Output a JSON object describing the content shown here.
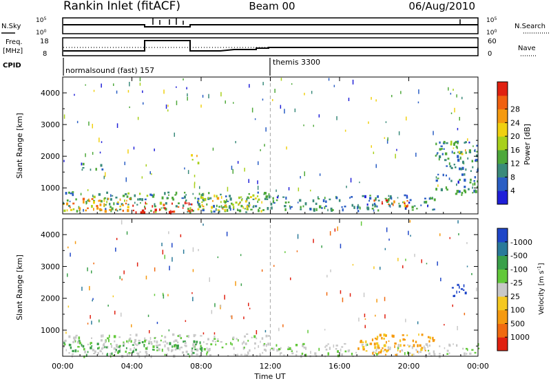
{
  "header": {
    "station": "Rankin Inlet (fitACF)",
    "beam": "Beam 00",
    "date": "06/Aug/2010"
  },
  "status_panels": {
    "nsky": {
      "label": "N.Sky",
      "right_label": "N.Search",
      "ticks_left": [
        "10^5",
        "10^0"
      ],
      "ticks_right": [
        "10^5",
        "10^0"
      ]
    },
    "freq": {
      "label": "Freq.",
      "unit": "[MHz]",
      "right_label": "Nave",
      "ticks_left": [
        "18",
        "8"
      ],
      "ticks_right": [
        "60",
        "0"
      ]
    },
    "cpid": {
      "label": "CPID",
      "segments": [
        {
          "name": "normalsound (fast) 157",
          "start_hour": 0
        },
        {
          "name": "themis 3300",
          "start_hour": 12
        }
      ]
    }
  },
  "time_axis": {
    "label": "Time UT",
    "ticks": [
      "00:00",
      "04:00",
      "08:00",
      "12:00",
      "16:00",
      "20:00",
      "00:00"
    ]
  },
  "chart_data": [
    {
      "type": "heatmap",
      "title": "",
      "xlabel": "Time UT",
      "ylabel": "Slant Range [km]",
      "xlim": [
        0,
        24
      ],
      "ylim": [
        180,
        4500
      ],
      "yticks": [
        "1000",
        "2000",
        "3000",
        "4000"
      ],
      "colorbar": {
        "label": "Power [dB]",
        "ticks": [
          "4",
          "8",
          "12",
          "16",
          "20",
          "24",
          "28"
        ],
        "range": [
          0,
          30
        ],
        "colors": [
          "#1f1fd8",
          "#2a5ec4",
          "#3a8a7a",
          "#4ea83a",
          "#a8d01c",
          "#f0d010",
          "#f59a10",
          "#f06010",
          "#e02010"
        ]
      },
      "regions": [
        {
          "t0": 0.0,
          "t1": 12.0,
          "r0": 250,
          "r1": 900,
          "value": 10
        },
        {
          "t0": 0.0,
          "t1": 4.0,
          "r0": 300,
          "r1": 700,
          "value": 22
        },
        {
          "t0": 4.0,
          "t1": 7.5,
          "r0": 250,
          "r1": 600,
          "value": 28
        },
        {
          "t0": 7.5,
          "t1": 11.5,
          "r0": 300,
          "r1": 800,
          "value": 16
        },
        {
          "t0": 12.0,
          "t1": 21.5,
          "r0": 300,
          "r1": 800,
          "value": 8
        },
        {
          "t0": 17.5,
          "t1": 20.0,
          "r0": 450,
          "r1": 650,
          "value": 24
        },
        {
          "t0": 1.0,
          "t1": 2.5,
          "r0": 1600,
          "r1": 1800,
          "value": 6
        },
        {
          "t0": 7.2,
          "t1": 7.8,
          "r0": 1800,
          "r1": 2100,
          "value": 18
        },
        {
          "t0": 21.5,
          "t1": 24.0,
          "r0": 800,
          "r1": 2500,
          "value": 8
        },
        {
          "t0": 22.3,
          "t1": 23.3,
          "r0": 2100,
          "r1": 2500,
          "value": 18
        }
      ]
    },
    {
      "type": "heatmap",
      "title": "",
      "xlabel": "Time UT",
      "ylabel": "Slant Range [km]",
      "xlim": [
        0,
        24
      ],
      "ylim": [
        180,
        4500
      ],
      "yticks": [
        "1000",
        "2000",
        "3000",
        "4000"
      ],
      "colorbar": {
        "label": "Velocity [m s^-1]",
        "ticks": [
          "1000",
          "500",
          "100",
          "25",
          "-25",
          "-100",
          "-500",
          "-1000"
        ],
        "colors": [
          "#1f46c8",
          "#2a7a9a",
          "#3aa04a",
          "#62c83a",
          "#c8c8c8",
          "#f5c820",
          "#f59a10",
          "#f06a10",
          "#e02010"
        ]
      },
      "regions": [
        {
          "t0": 0.0,
          "t1": 12.0,
          "r0": 200,
          "r1": 900,
          "value": "grey"
        },
        {
          "t0": 0.0,
          "t1": 8.0,
          "r0": 250,
          "r1": 700,
          "value": "green"
        },
        {
          "t0": 12.0,
          "t1": 24.0,
          "r0": 200,
          "r1": 600,
          "value": "grey"
        },
        {
          "t0": 17.0,
          "t1": 21.5,
          "r0": 250,
          "r1": 900,
          "value": "orange"
        },
        {
          "t0": 22.3,
          "t1": 23.3,
          "r0": 2100,
          "r1": 2500,
          "value": "blue"
        }
      ]
    }
  ]
}
